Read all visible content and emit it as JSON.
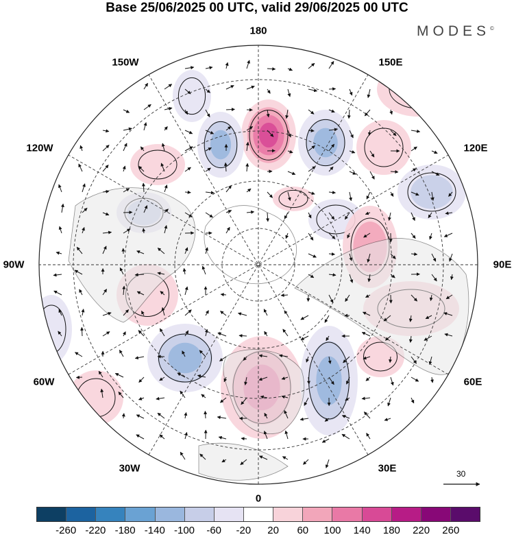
{
  "title": "Base 25/06/2025 00 UTC, valid 29/06/2025 00 UTC",
  "brand": "MODES",
  "brand_mark": "©",
  "longitude_labels": {
    "top": "180",
    "bottom": "0",
    "left": "90W",
    "right": "90E",
    "w150": "150W",
    "w120": "120W",
    "w60": "60W",
    "w30": "30W",
    "e150": "150E",
    "e120": "120E",
    "e60": "60E",
    "e30": "30E"
  },
  "reference_vector": {
    "label": "30"
  },
  "legend": {
    "ticks": [
      "-260",
      "-220",
      "-180",
      "-140",
      "-100",
      "-60",
      "-20",
      "20",
      "60",
      "100",
      "140",
      "180",
      "220",
      "260"
    ],
    "colors": [
      "#0d3f63",
      "#1c63a0",
      "#3683bd",
      "#6aa2d3",
      "#9ab7de",
      "#c7cee8",
      "#e6e3f3",
      "#ffffff",
      "#f8d3da",
      "#f2a6ba",
      "#e979a6",
      "#d84a96",
      "#b71c86",
      "#880877",
      "#5a0c6b"
    ]
  },
  "anomalies": [
    {
      "sign": "pos",
      "level": 4
    },
    {
      "sign": "neg",
      "level": 3
    },
    {
      "sign": "neg",
      "level": 3
    },
    {
      "sign": "neg",
      "level": 2
    },
    {
      "sign": "pos",
      "level": 1
    },
    {
      "sign": "neg",
      "level": 2
    },
    {
      "sign": "neg",
      "level": 1
    },
    {
      "sign": "pos",
      "level": 2
    },
    {
      "sign": "pos",
      "level": 1
    },
    {
      "sign": "pos",
      "level": 1
    },
    {
      "sign": "neg",
      "level": 3
    },
    {
      "sign": "pos",
      "level": 3
    },
    {
      "sign": "neg",
      "level": 3
    },
    {
      "sign": "pos",
      "level": 1
    },
    {
      "sign": "pos",
      "level": 1
    },
    {
      "sign": "neg",
      "level": 1
    },
    {
      "sign": "pos",
      "level": 1
    },
    {
      "sign": "neg",
      "level": 1
    },
    {
      "sign": "pos",
      "level": 1
    },
    {
      "sign": "pos",
      "level": 1
    }
  ]
}
